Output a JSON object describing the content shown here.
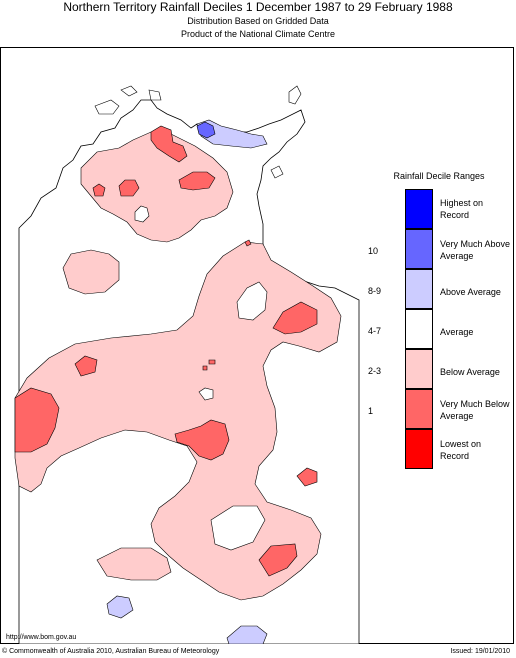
{
  "header": {
    "title": "Northern Territory Rainfall Deciles     1 December 1987 to 29 February 1988",
    "subtitle1": "Distribution Based on Gridded Data",
    "subtitle2": "Product of the National Climate Centre"
  },
  "legend": {
    "title": "Rainfall Decile Ranges",
    "items": [
      {
        "range": "",
        "label": "Highest on Record",
        "color": "#0000ff"
      },
      {
        "range": "10",
        "label": "Very Much Above Average",
        "color": "#6666ff"
      },
      {
        "range": "8-9",
        "label": "Above Average",
        "color": "#ccccff"
      },
      {
        "range": "4-7",
        "label": "Average",
        "color": "#ffffff"
      },
      {
        "range": "2-3",
        "label": "Below Average",
        "color": "#ffcccc"
      },
      {
        "range": "1",
        "label": "Very Much Below Average",
        "color": "#ff6666"
      },
      {
        "range": "",
        "label": "Lowest on Record",
        "color": "#ff0000"
      }
    ]
  },
  "footer": {
    "url": "http://www.bom.gov.au",
    "copyright": "© Commonwealth of Australia 2010, Australian Bureau of Meteorology",
    "issued": "Issued: 19/01/2010"
  },
  "map": {
    "region": "Northern Territory",
    "colors": {
      "below": "#ffcccc",
      "very_much_below": "#ff6666",
      "above": "#ccccff",
      "outline": "#000000"
    }
  }
}
